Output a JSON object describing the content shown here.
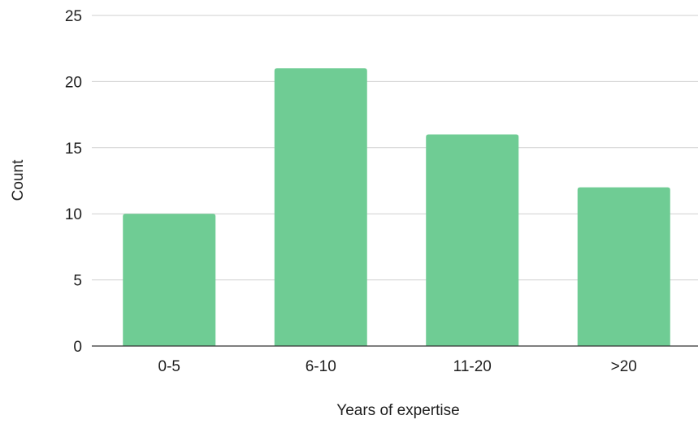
{
  "chart_data": {
    "type": "bar",
    "categories": [
      "0-5",
      "6-10",
      "11-20",
      ">20"
    ],
    "values": [
      10,
      21,
      16,
      12
    ],
    "xlabel": "Years of expertise",
    "ylabel": "Count",
    "ylim": [
      0,
      25
    ],
    "yticks": [
      "0",
      "5",
      "10",
      "15",
      "20",
      "25"
    ],
    "grid": true,
    "legend": "none",
    "bar_color": "#6fcc94",
    "grid_color": "#cfcfcf",
    "axis_color": "#333333",
    "text_color": "#1f1f1f"
  }
}
